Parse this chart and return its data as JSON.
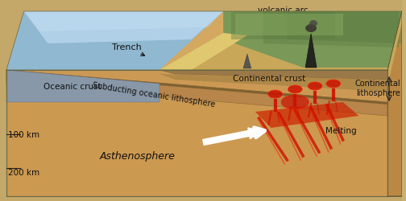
{
  "labels": {
    "volcanic_arc": "volcanic arc",
    "trench": "Trench",
    "oceanic_crust": "Oceanic crust",
    "subducting": "Subducting oceanic lithosphere",
    "continental_crust": "Continental crust",
    "continental_litho": "Continental\nlithosphere",
    "asthenosphere": "Asthenosphere",
    "melting": "Melting",
    "100km": "100 km",
    "200km": "200 km"
  },
  "fig_width": 5.04,
  "fig_height": 2.51,
  "dpi": 100
}
